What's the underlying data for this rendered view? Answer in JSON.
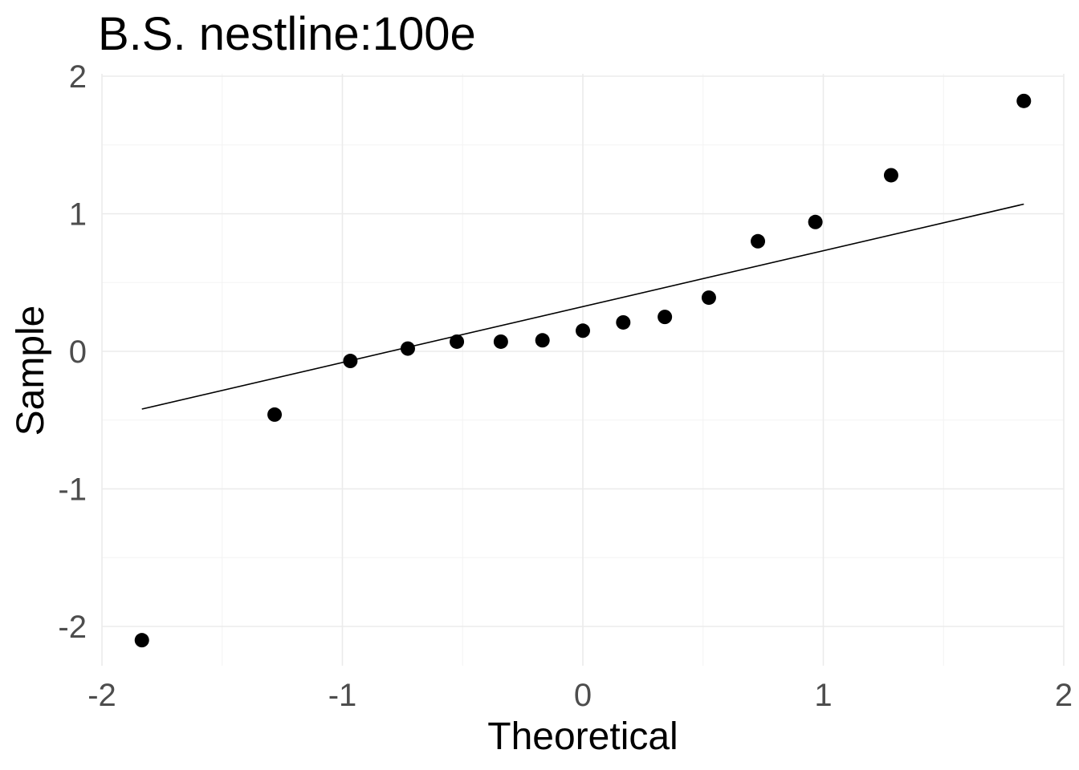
{
  "chart_data": {
    "type": "scatter",
    "title": "B.S. nestline:100e",
    "xlabel": "Theoretical",
    "ylabel": "Sample",
    "xlim": [
      -2,
      2
    ],
    "ylim": [
      -2.1,
      2
    ],
    "x_ticks": [
      -2,
      -1,
      0,
      1,
      2
    ],
    "y_ticks": [
      -2,
      -1,
      0,
      1,
      2
    ],
    "x_tick_labels": [
      "-2",
      "-1",
      "0",
      "1",
      "2"
    ],
    "y_tick_labels": [
      "-2",
      "-1",
      "0",
      "1",
      "2"
    ],
    "grid": true,
    "legend": "none",
    "points": [
      {
        "x": -1.834,
        "y": -2.1
      },
      {
        "x": -1.282,
        "y": -0.46
      },
      {
        "x": -0.967,
        "y": -0.07
      },
      {
        "x": -0.728,
        "y": 0.02
      },
      {
        "x": -0.524,
        "y": 0.07
      },
      {
        "x": -0.341,
        "y": 0.07
      },
      {
        "x": -0.168,
        "y": 0.08
      },
      {
        "x": 0.0,
        "y": 0.15
      },
      {
        "x": 0.168,
        "y": 0.21
      },
      {
        "x": 0.341,
        "y": 0.25
      },
      {
        "x": 0.524,
        "y": 0.39
      },
      {
        "x": 0.728,
        "y": 0.8
      },
      {
        "x": 0.967,
        "y": 0.94
      },
      {
        "x": 1.282,
        "y": 1.28
      },
      {
        "x": 1.834,
        "y": 1.82
      }
    ],
    "reference_line": {
      "x": [
        -1.834,
        1.834
      ],
      "y": [
        -0.42,
        1.07
      ]
    },
    "colors": {
      "points": "#000000",
      "line": "#000000",
      "grid": "#ebebeb"
    }
  }
}
